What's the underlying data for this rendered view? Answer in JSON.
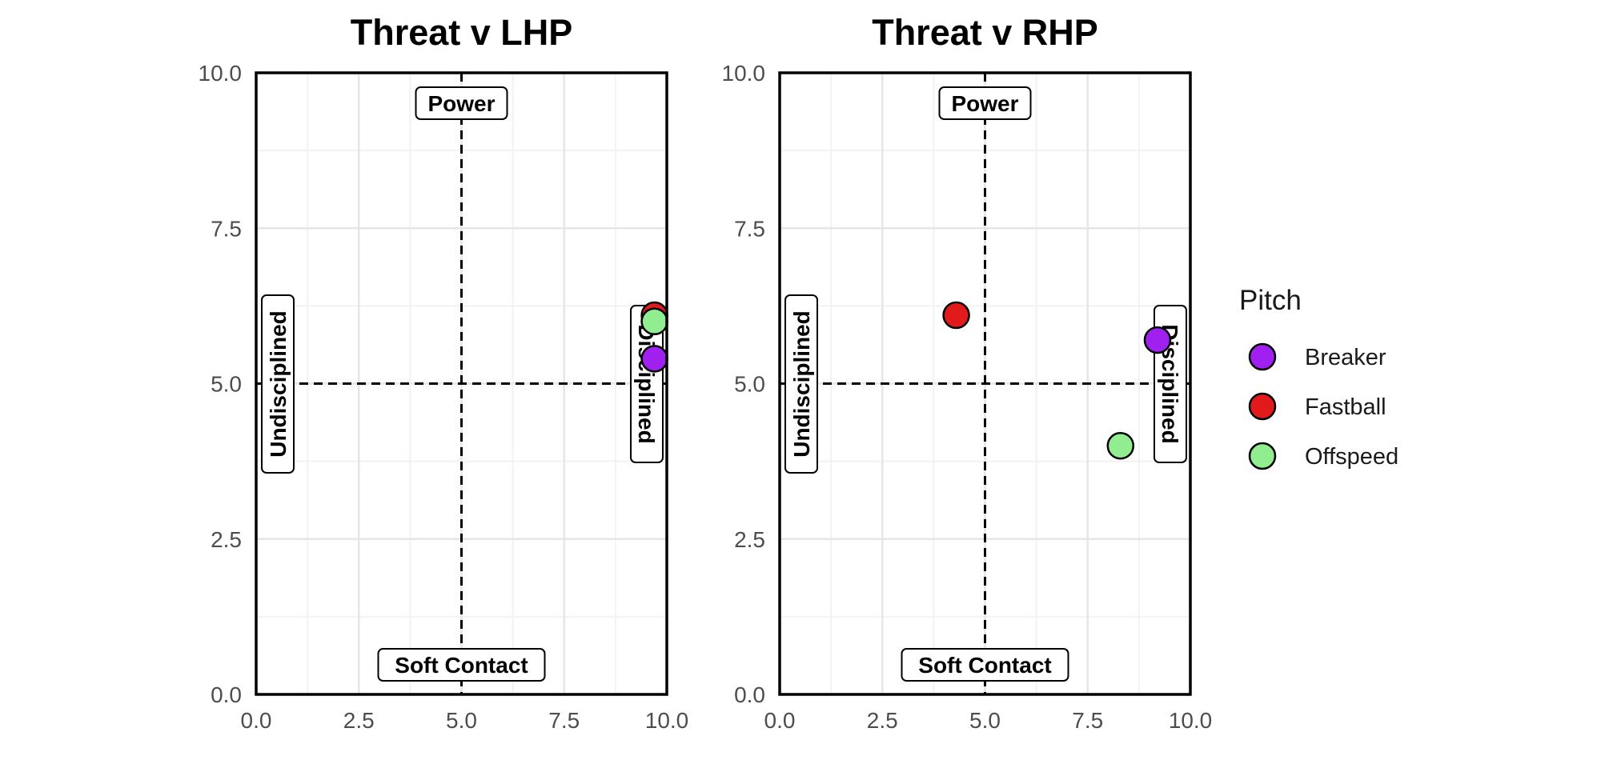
{
  "chart_data": [
    {
      "type": "scatter",
      "title": "Threat v LHP",
      "xlim": [
        0,
        10
      ],
      "ylim": [
        0,
        10
      ],
      "x_ticks": [
        "0.0",
        "2.5",
        "5.0",
        "7.5",
        "10.0"
      ],
      "y_ticks": [
        "0.0",
        "2.5",
        "5.0",
        "7.5",
        "10.0"
      ],
      "grid": true,
      "reference_lines": {
        "x": 5,
        "y": 5,
        "style": "dashed"
      },
      "quadrant_labels": {
        "top": "Power",
        "bottom": "Soft Contact",
        "left": "Undisciplined",
        "right": "Disciplined"
      },
      "series": [
        {
          "name": "Fastball",
          "color": "#e31a1c",
          "points": [
            {
              "x": 9.7,
              "y": 6.1
            }
          ]
        },
        {
          "name": "Offspeed",
          "color": "#90ee90",
          "points": [
            {
              "x": 9.7,
              "y": 6.0
            }
          ]
        },
        {
          "name": "Breaker",
          "color": "#a020f0",
          "points": [
            {
              "x": 9.7,
              "y": 5.4
            }
          ]
        }
      ]
    },
    {
      "type": "scatter",
      "title": "Threat v RHP",
      "xlim": [
        0,
        10
      ],
      "ylim": [
        0,
        10
      ],
      "x_ticks": [
        "0.0",
        "2.5",
        "5.0",
        "7.5",
        "10.0"
      ],
      "y_ticks": [
        "0.0",
        "2.5",
        "5.0",
        "7.5",
        "10.0"
      ],
      "grid": true,
      "reference_lines": {
        "x": 5,
        "y": 5,
        "style": "dashed"
      },
      "quadrant_labels": {
        "top": "Power",
        "bottom": "Soft Contact",
        "left": "Undisciplined",
        "right": "Disciplined"
      },
      "series": [
        {
          "name": "Fastball",
          "color": "#e31a1c",
          "points": [
            {
              "x": 4.3,
              "y": 6.1
            }
          ]
        },
        {
          "name": "Offspeed",
          "color": "#90ee90",
          "points": [
            {
              "x": 8.3,
              "y": 4.0
            }
          ]
        },
        {
          "name": "Breaker",
          "color": "#a020f0",
          "points": [
            {
              "x": 9.2,
              "y": 5.7
            }
          ]
        }
      ]
    }
  ],
  "legend": {
    "title": "Pitch",
    "placement": "right",
    "items": [
      {
        "label": "Breaker",
        "color": "#a020f0"
      },
      {
        "label": "Fastball",
        "color": "#e31a1c"
      },
      {
        "label": "Offspeed",
        "color": "#90ee90"
      }
    ]
  }
}
